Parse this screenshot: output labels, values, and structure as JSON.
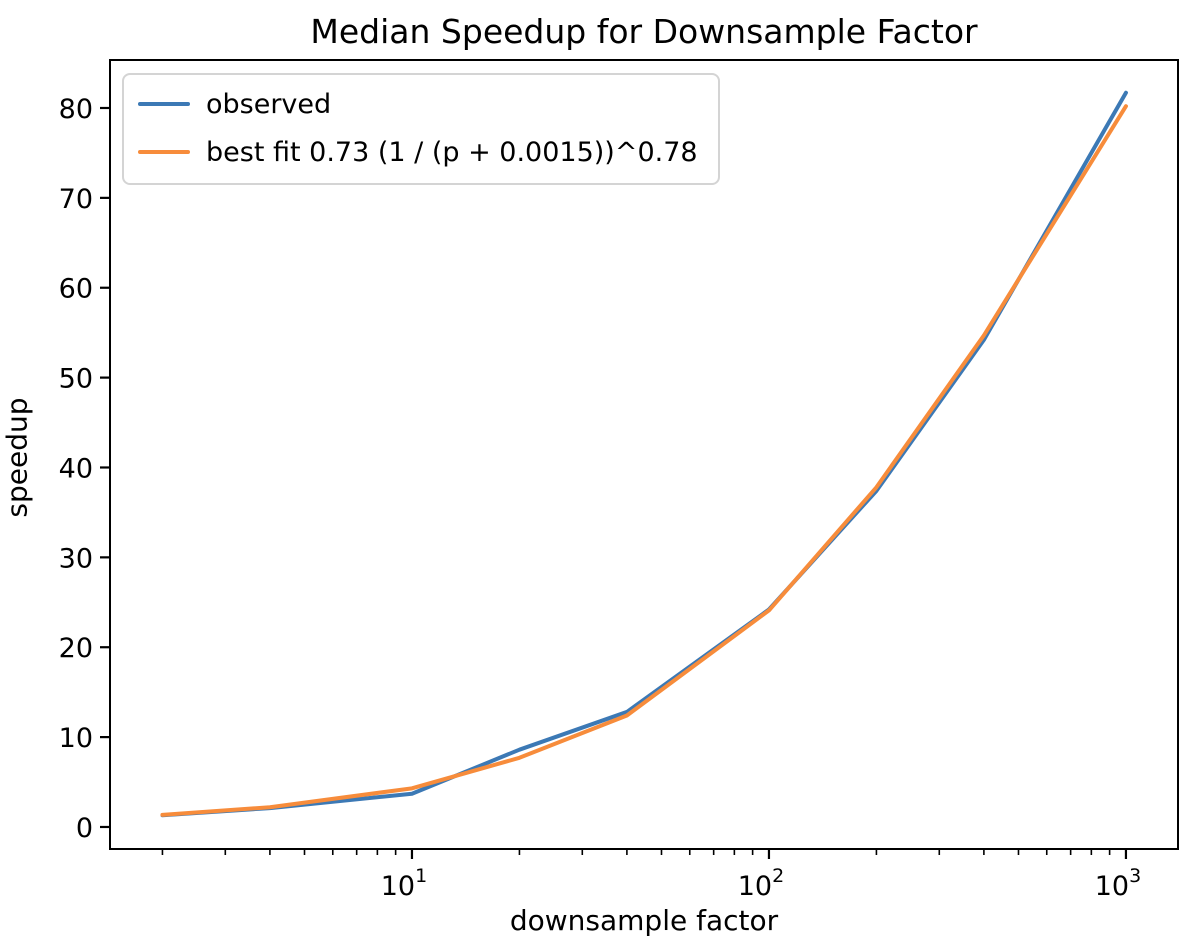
{
  "figure": {
    "title": "Median Speedup for Downsample Factor",
    "xlabel": "downsample factor",
    "ylabel": "speedup"
  },
  "legend": {
    "position": "upper left",
    "items": [
      {
        "label": "observed",
        "color": "#3c79b5"
      },
      {
        "label": "best fit 0.73 (1 / (p + 0.0015))^0.78",
        "color": "#f78c3b"
      }
    ]
  },
  "chart_data": {
    "type": "line",
    "title": "Median Speedup for Downsample Factor",
    "xlabel": "downsample factor",
    "ylabel": "speedup",
    "x_scale": "log",
    "y_scale": "linear",
    "grid": false,
    "legend_position": "upper left",
    "x": [
      2,
      4,
      10,
      20,
      40,
      100,
      200,
      400,
      1000
    ],
    "series": [
      {
        "name": "observed",
        "color": "#3c79b5",
        "values": [
          1.3,
          2.1,
          3.7,
          8.6,
          12.8,
          24.2,
          37.4,
          54.2,
          81.7
        ]
      },
      {
        "name": "best fit 0.73 (1 / (p + 0.0015))^0.78",
        "color": "#f78c3b",
        "values": [
          1.35,
          2.2,
          4.3,
          7.7,
          12.4,
          24.1,
          37.8,
          54.7,
          80.2
        ]
      }
    ],
    "x_major_ticks": [
      {
        "value": 10,
        "label_base": "10",
        "label_exp": "1"
      },
      {
        "value": 100,
        "label_base": "10",
        "label_exp": "2"
      },
      {
        "value": 1000,
        "label_base": "10",
        "label_exp": "3"
      }
    ],
    "y_ticks": [
      0,
      10,
      20,
      30,
      40,
      50,
      60,
      70,
      80
    ],
    "xlim": [
      1.426,
      1399
    ],
    "ylim": [
      -2.45,
      85.34
    ]
  }
}
